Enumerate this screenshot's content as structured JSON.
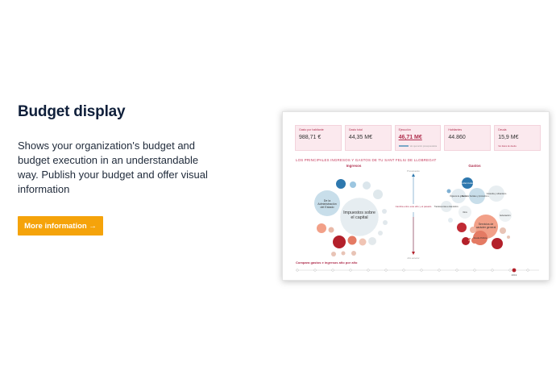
{
  "hero": {
    "title": "Budget display",
    "description": "Shows your organization's budget and budget execution in an understandable way. Publish your budget and offer visual information",
    "cta_label": "More information →",
    "cta_color": "#f5a30a"
  },
  "preview": {
    "kpis": [
      {
        "label": "Gasto por habitante",
        "value": "988,71 €"
      },
      {
        "label": "Gasto total",
        "value": "44,35 M€"
      },
      {
        "label": "Ejecución",
        "value": "46,71 M€",
        "sub": "Ver ejecución presupuestaria"
      },
      {
        "label": "Habitantes",
        "value": "44.860"
      },
      {
        "label": "Deuda",
        "value": "15,9 M€",
        "sub": "Ver datos de deuda"
      }
    ],
    "section_title": "LOS PRINCIPALES INGRESOS Y GASTOS DE TU SANT FELIU DE LLOBREGAT",
    "income_title": "Ingresos",
    "expenses_title": "Gastos",
    "center_label": "Cambia entre este año y el pasado",
    "axis_top": "Presupuesto",
    "axis_bottom": "Año anterior",
    "income_bubbles": {
      "big": "Impuestos sobre el capital",
      "state": "De la Administración del Estado"
    },
    "expense_bubbles": {
      "general": "Servicios de carácter general",
      "deuda": "Deuda",
      "vivienda": "Vivienda y urbanismo",
      "educacion": "Educación",
      "seguridad": "Seguridad ciudadana",
      "servicios_sociales": "Servicios Sociales y promoción social",
      "otros": "Otros",
      "deuda_publica": "Deuda Pública",
      "organos": "Órganos de gobierno",
      "transferencias": "Transferencias a otras Admin."
    },
    "timeline_title": "Compara gastos e ingresos año por año",
    "timeline_active_label": "2019"
  },
  "colors": {
    "accent": "#b0304f",
    "blue_dark": "#2e78ae",
    "blue_light": "#c8deea",
    "red_dark": "#b3202a",
    "red_light": "#f2a088"
  }
}
